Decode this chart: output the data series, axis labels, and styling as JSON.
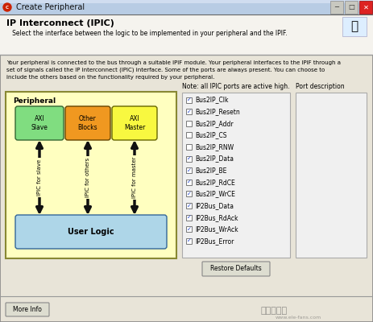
{
  "title_bar": "Create Peripheral",
  "bg_outer": "#c8c8c8",
  "dialog_bg": "#e8e4d8",
  "header_title": "IP Interconnect (IPIC)",
  "header_sub": "   Select the interface between the logic to be implemented in your peripheral and the IPIF.",
  "body_line1": "Your peripheral is connected to the bus through a suitable IPIF module. Your peripheral interfaces to the IPIF through a",
  "body_line2": "set of signals called the IP interconnect (IPIC) interface. Some of the ports are always present. You can choose to",
  "body_line3": "include the others based on the functionality required by your peripheral.",
  "note_text": "Note: all IPIC ports are active high.",
  "port_desc_label": "Port description",
  "peripheral_label": "Peripheral",
  "user_logic_label": "User Logic",
  "axi_slave_label": "AXI\nSlave",
  "other_blocks_label": "Other\nBlocks",
  "axi_master_label": "AXI\nMaster",
  "ipic_slave_label": "IPIC for slave",
  "ipic_others_label": "IPIC for others",
  "ipic_master_label": "IPIC for master",
  "checkboxes": [
    {
      "label": "Bus2IP_Clk",
      "checked": true
    },
    {
      "label": "Bus2IP_Resetn",
      "checked": true
    },
    {
      "label": "Bus2IP_Addr",
      "checked": false
    },
    {
      "label": "Bus2IP_CS",
      "checked": false
    },
    {
      "label": "Bus2IP_RNW",
      "checked": false
    },
    {
      "label": "Bus2IP_Data",
      "checked": true
    },
    {
      "label": "Bus2IP_BE",
      "checked": true
    },
    {
      "label": "Bus2IP_RdCE",
      "checked": true
    },
    {
      "label": "Bus2IP_WrCE",
      "checked": true
    },
    {
      "label": "IP2Bus_Data",
      "checked": true
    },
    {
      "label": "IP2Bus_RdAck",
      "checked": true
    },
    {
      "label": "IP2Bus_WrAck",
      "checked": true
    },
    {
      "label": "IP2Bus_Error",
      "checked": true
    }
  ],
  "restore_btn": "Restore Defaults",
  "more_info_btn": "More Info",
  "panel_bg": "#ffffc0",
  "user_logic_bg": "#aed6e8",
  "axi_slave_bg": "#80dd80",
  "other_blocks_bg": "#f09820",
  "axi_master_bg": "#f8f840",
  "title_bar_bg": "#c0cce0",
  "close_btn_color": "#dd2222",
  "separator_color": "#aaaaaa",
  "cb_panel_bg": "#f0f0f0",
  "pd_panel_bg": "#f0f0f0",
  "watermark_text": "电子发烧友",
  "watermark_url": "www.ele-fans.com"
}
